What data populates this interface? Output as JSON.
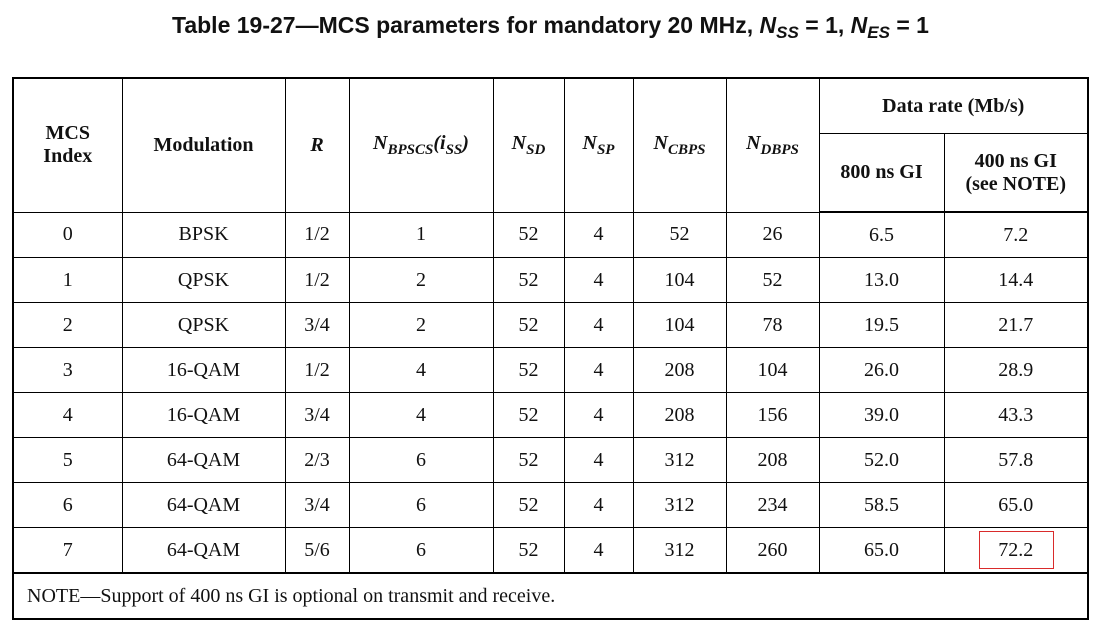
{
  "title": {
    "prefix": "Table 19-27—MCS parameters for mandatory 20 MHz, ",
    "nss_var": "N",
    "nss_sub": "SS",
    "nss_eq": " = 1, ",
    "nes_var": "N",
    "nes_sub": "ES",
    "nes_eq": " = 1"
  },
  "headers": {
    "mcs_index": "MCS Index",
    "modulation": "Modulation",
    "r": "R",
    "nbpscs_var": "N",
    "nbpscs_sub": "BPSCS",
    "nbpscs_arg": "(i",
    "nbpscs_arg_sub": "SS",
    "nbpscs_close": ")",
    "nsd_var": "N",
    "nsd_sub": "SD",
    "nsp_var": "N",
    "nsp_sub": "SP",
    "ncbps_var": "N",
    "ncbps_sub": "CBPS",
    "ndbps_var": "N",
    "ndbps_sub": "DBPS",
    "data_rate": "Data rate (Mb/s)",
    "gi800": "800 ns GI",
    "gi400_line1": "400 ns GI",
    "gi400_line2": "(see NOTE)"
  },
  "rows": [
    {
      "mcs": "0",
      "mod": "BPSK",
      "r": "1/2",
      "nbpscs": "1",
      "nsd": "52",
      "nsp": "4",
      "ncbps": "52",
      "ndbps": "26",
      "gi800": "6.5",
      "gi400": "7.2"
    },
    {
      "mcs": "1",
      "mod": "QPSK",
      "r": "1/2",
      "nbpscs": "2",
      "nsd": "52",
      "nsp": "4",
      "ncbps": "104",
      "ndbps": "52",
      "gi800": "13.0",
      "gi400": "14.4"
    },
    {
      "mcs": "2",
      "mod": "QPSK",
      "r": "3/4",
      "nbpscs": "2",
      "nsd": "52",
      "nsp": "4",
      "ncbps": "104",
      "ndbps": "78",
      "gi800": "19.5",
      "gi400": "21.7"
    },
    {
      "mcs": "3",
      "mod": "16-QAM",
      "r": "1/2",
      "nbpscs": "4",
      "nsd": "52",
      "nsp": "4",
      "ncbps": "208",
      "ndbps": "104",
      "gi800": "26.0",
      "gi400": "28.9"
    },
    {
      "mcs": "4",
      "mod": "16-QAM",
      "r": "3/4",
      "nbpscs": "4",
      "nsd": "52",
      "nsp": "4",
      "ncbps": "208",
      "ndbps": "156",
      "gi800": "39.0",
      "gi400": "43.3"
    },
    {
      "mcs": "5",
      "mod": "64-QAM",
      "r": "2/3",
      "nbpscs": "6",
      "nsd": "52",
      "nsp": "4",
      "ncbps": "312",
      "ndbps": "208",
      "gi800": "52.0",
      "gi400": "57.8"
    },
    {
      "mcs": "6",
      "mod": "64-QAM",
      "r": "3/4",
      "nbpscs": "6",
      "nsd": "52",
      "nsp": "4",
      "ncbps": "312",
      "ndbps": "234",
      "gi800": "58.5",
      "gi400": "65.0"
    },
    {
      "mcs": "7",
      "mod": "64-QAM",
      "r": "5/6",
      "nbpscs": "6",
      "nsd": "52",
      "nsp": "4",
      "ncbps": "312",
      "ndbps": "260",
      "gi800": "65.0",
      "gi400": "72.2"
    }
  ],
  "highlight_color": "#d92b2b",
  "note": "NOTE—Support of 400 ns GI is optional on transmit and receive."
}
